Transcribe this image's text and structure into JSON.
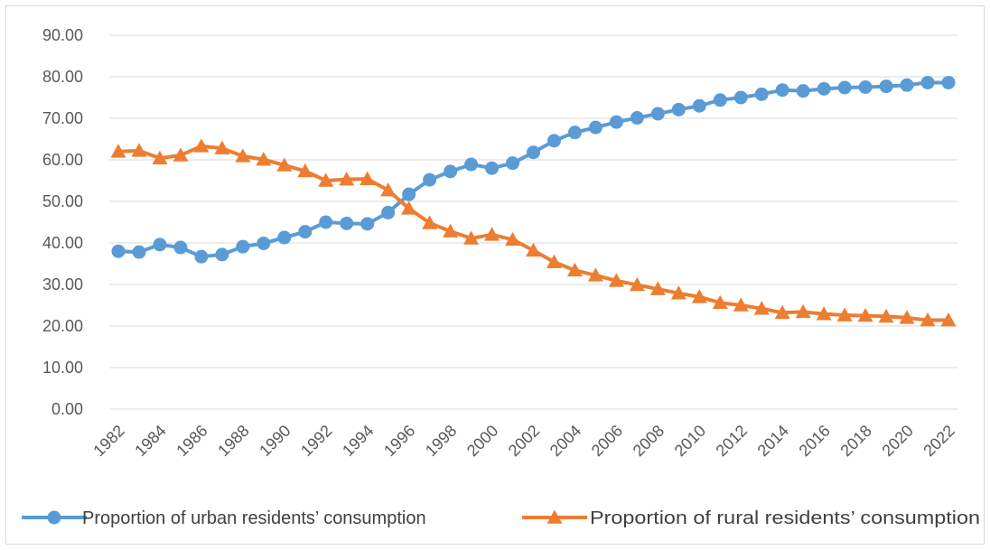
{
  "colors": {
    "urban": "#5b9bd5",
    "rural": "#ed7d31",
    "grid": "#d9d9d9",
    "text": "#595959"
  },
  "chart_data": {
    "type": "line",
    "title": "",
    "xlabel": "",
    "ylabel": "",
    "ylim": [
      0,
      90
    ],
    "y_ticks": [
      "0.00",
      "10.00",
      "20.00",
      "30.00",
      "40.00",
      "50.00",
      "60.00",
      "70.00",
      "80.00",
      "90.00"
    ],
    "x": [
      1982,
      1983,
      1984,
      1985,
      1986,
      1987,
      1988,
      1989,
      1990,
      1991,
      1992,
      1993,
      1994,
      1995,
      1996,
      1997,
      1998,
      1999,
      2000,
      2001,
      2002,
      2003,
      2004,
      2005,
      2006,
      2007,
      2008,
      2009,
      2010,
      2011,
      2012,
      2013,
      2014,
      2015,
      2016,
      2017,
      2018,
      2019,
      2020,
      2021,
      2022
    ],
    "x_tick_labels": [
      "1982",
      "1984",
      "1986",
      "1988",
      "1990",
      "1992",
      "1994",
      "1996",
      "1998",
      "2000",
      "2002",
      "2004",
      "2006",
      "2008",
      "2010",
      "2012",
      "2014",
      "2016",
      "2018",
      "2020",
      "2022"
    ],
    "grid": true,
    "legend_position": "bottom",
    "series": [
      {
        "name": "Proportion of urban residents’ consumption",
        "marker": "circle",
        "values": [
          38.0,
          37.8,
          39.6,
          38.9,
          36.7,
          37.2,
          39.1,
          39.9,
          41.3,
          42.7,
          45.0,
          44.7,
          44.6,
          47.3,
          51.7,
          55.2,
          57.2,
          58.9,
          58.0,
          59.2,
          61.8,
          64.6,
          66.6,
          67.8,
          69.1,
          70.1,
          71.1,
          72.1,
          73.0,
          74.4,
          75.0,
          75.8,
          76.8,
          76.6,
          77.1,
          77.4,
          77.5,
          77.7,
          78.0,
          78.6,
          78.6
        ]
      },
      {
        "name": "Proportion of rural residents’ consumption",
        "marker": "triangle",
        "values": [
          62.0,
          62.2,
          60.4,
          61.1,
          63.3,
          62.8,
          60.9,
          60.1,
          58.7,
          57.3,
          55.0,
          55.3,
          55.4,
          52.7,
          48.3,
          44.8,
          42.8,
          41.1,
          42.0,
          40.8,
          38.2,
          35.4,
          33.4,
          32.2,
          30.9,
          29.9,
          28.9,
          27.9,
          27.0,
          25.6,
          25.0,
          24.2,
          23.2,
          23.4,
          22.9,
          22.6,
          22.5,
          22.3,
          22.0,
          21.4,
          21.4
        ]
      }
    ]
  }
}
